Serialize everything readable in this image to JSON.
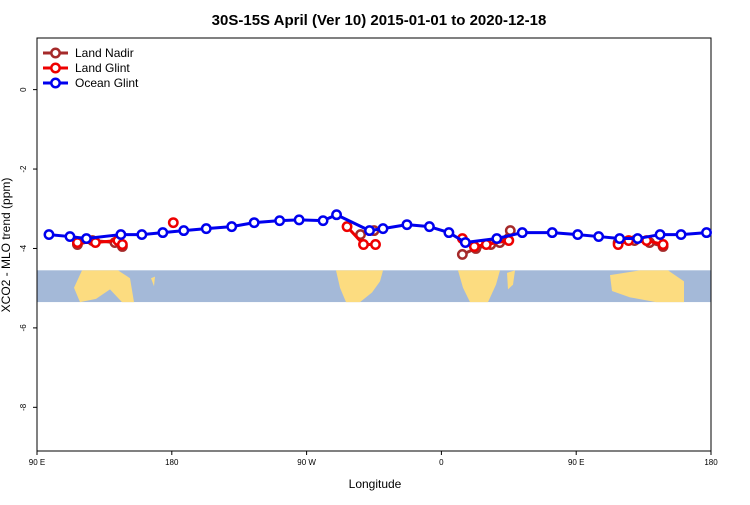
{
  "chart_data": {
    "type": "line",
    "title": "30S-15S April (Ver 10)   2015-01-01 to 2020-12-18",
    "xlabel": "Longitude",
    "ylabel": "XCO2 - MLO trend (ppm)",
    "xlim": [
      90,
      540
    ],
    "ylim": [
      -9.1,
      1.3
    ],
    "x_ticks": [
      {
        "value": 90,
        "label": "90 E"
      },
      {
        "value": 180,
        "label": "180"
      },
      {
        "value": 270,
        "label": "90 W"
      },
      {
        "value": 360,
        "label": "0"
      },
      {
        "value": 450,
        "label": "90 E"
      },
      {
        "value": 540,
        "label": "180"
      }
    ],
    "y_ticks": [
      {
        "value": 0,
        "label": "0"
      },
      {
        "value": -2,
        "label": "-2"
      },
      {
        "value": -4,
        "label": "-4"
      },
      {
        "value": -6,
        "label": "-6"
      },
      {
        "value": -8,
        "label": "-8"
      }
    ],
    "map_band": {
      "ymin": -5.35,
      "ymax": -4.55,
      "ocean_color": "#a4b9d8",
      "land_color": "#fcdc80"
    },
    "legend_position": "top-left",
    "series": [
      {
        "name": "Land Nadir",
        "color": "#a52a2a",
        "segments": [
          [
            [
              117,
              -3.9
            ],
            [
              127,
              -3.8
            ],
            [
              142,
              -3.85
            ],
            [
              147,
              -3.95
            ]
          ],
          [
            [
              306,
              -3.65
            ],
            [
              315,
              -3.55
            ]
          ],
          [
            [
              374,
              -4.15
            ],
            [
              383,
              -4.0
            ],
            [
              393,
              -3.9
            ],
            [
              399,
              -3.85
            ],
            [
              406,
              -3.55
            ]
          ],
          [
            [
              478,
              -3.85
            ],
            [
              489,
              -3.8
            ],
            [
              499,
              -3.85
            ],
            [
              508,
              -3.95
            ]
          ]
        ]
      },
      {
        "name": "Land Glint",
        "color": "#ee0000",
        "segments": [
          [
            [
              117,
              -3.85
            ],
            [
              129,
              -3.85
            ],
            [
              144,
              -3.8
            ],
            [
              147,
              -3.9
            ]
          ],
          [
            [
              181,
              -3.35
            ]
          ],
          [
            [
              297,
              -3.45
            ],
            [
              308,
              -3.9
            ],
            [
              316,
              -3.9
            ]
          ],
          [
            [
              374,
              -3.75
            ],
            [
              382,
              -3.95
            ],
            [
              390,
              -3.9
            ],
            [
              405,
              -3.8
            ]
          ],
          [
            [
              478,
              -3.9
            ],
            [
              485,
              -3.8
            ],
            [
              497,
              -3.8
            ],
            [
              508,
              -3.9
            ]
          ]
        ]
      },
      {
        "name": "Ocean Glint",
        "color": "#0000ee",
        "segments": [
          [
            [
              98,
              -3.65
            ],
            [
              112,
              -3.7
            ],
            [
              123,
              -3.75
            ],
            [
              146,
              -3.65
            ],
            [
              160,
              -3.65
            ],
            [
              174,
              -3.6
            ],
            [
              188,
              -3.55
            ],
            [
              203,
              -3.5
            ],
            [
              220,
              -3.45
            ],
            [
              235,
              -3.35
            ],
            [
              252,
              -3.3
            ],
            [
              265,
              -3.28
            ],
            [
              281,
              -3.3
            ],
            [
              290,
              -3.15
            ],
            [
              312,
              -3.55
            ],
            [
              321,
              -3.5
            ],
            [
              337,
              -3.4
            ],
            [
              352,
              -3.45
            ],
            [
              365,
              -3.6
            ],
            [
              376,
              -3.85
            ],
            [
              397,
              -3.75
            ],
            [
              414,
              -3.6
            ],
            [
              434,
              -3.6
            ],
            [
              451,
              -3.65
            ],
            [
              465,
              -3.7
            ],
            [
              479,
              -3.75
            ],
            [
              491,
              -3.75
            ],
            [
              506,
              -3.65
            ],
            [
              520,
              -3.65
            ],
            [
              537,
              -3.6
            ]
          ]
        ]
      }
    ]
  }
}
